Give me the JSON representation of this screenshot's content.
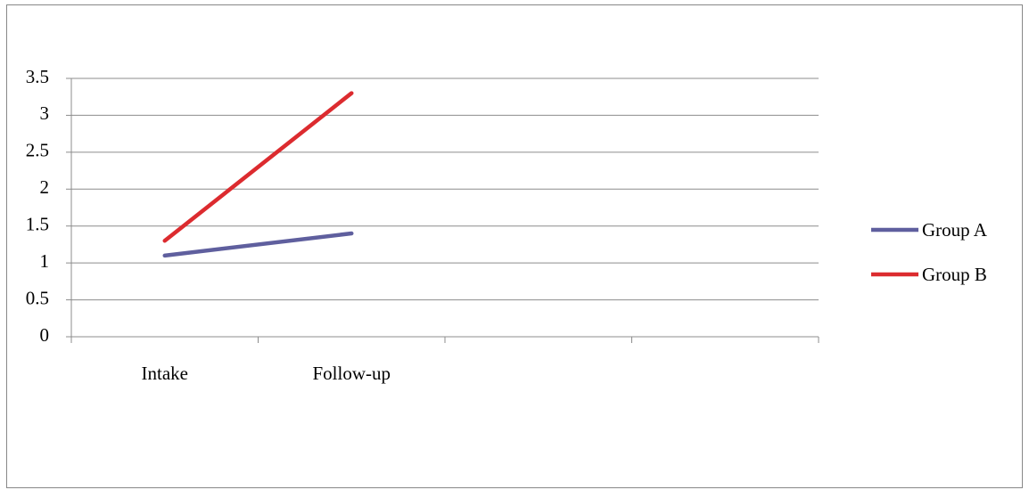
{
  "chart_data": {
    "type": "line",
    "categories": [
      "Intake",
      "Follow-up",
      null,
      null
    ],
    "series": [
      {
        "name": "Group A",
        "color": "#5f5f9e",
        "values": [
          1.1,
          1.4,
          null,
          null
        ]
      },
      {
        "name": "Group B",
        "color": "#dc2b2f",
        "values": [
          1.3,
          3.3,
          null,
          null
        ]
      }
    ],
    "ylim": [
      0,
      3.5
    ],
    "yticks": [
      0,
      0.5,
      1,
      1.5,
      2,
      2.5,
      3,
      3.5
    ],
    "grid": true,
    "legend": "right"
  }
}
